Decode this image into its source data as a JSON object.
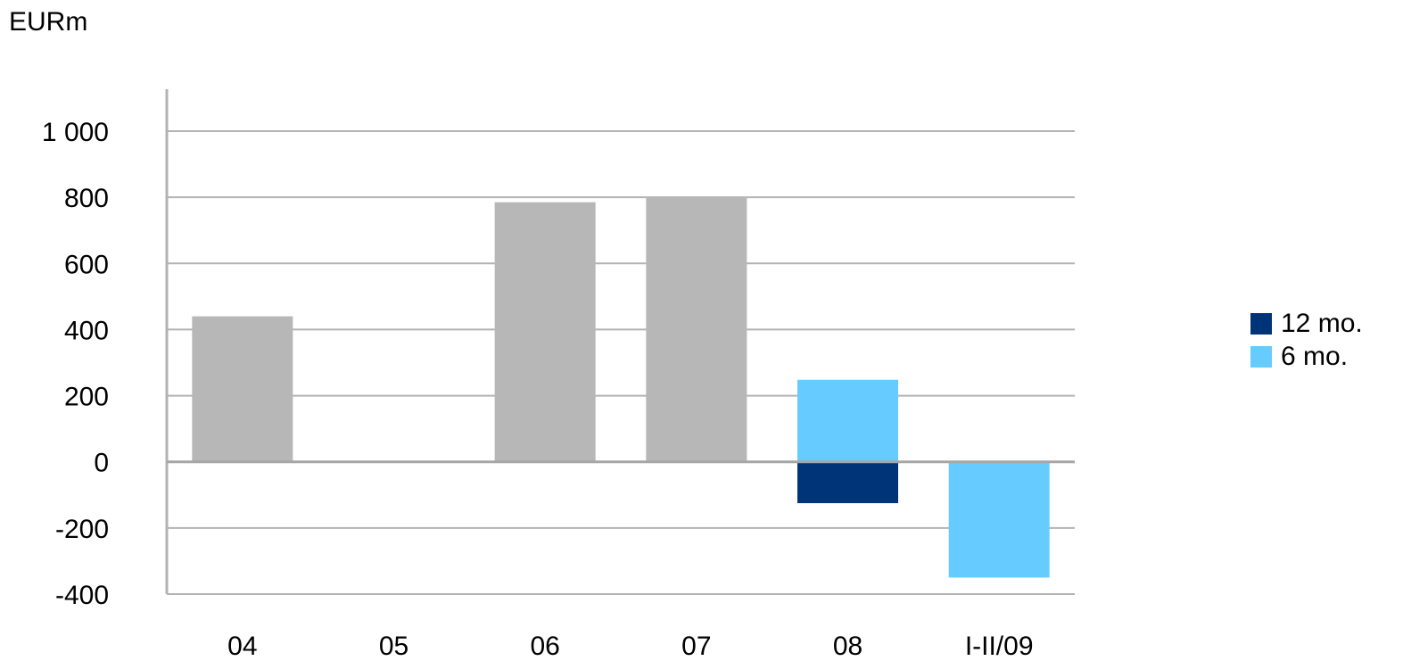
{
  "chart_data": {
    "type": "bar",
    "ylabel": "EURm",
    "categories": [
      "04",
      "05",
      "06",
      "07",
      "08",
      "I-II/09"
    ],
    "ylim": [
      -400,
      1000
    ],
    "yticks": [
      1000,
      800,
      600,
      400,
      200,
      0,
      -200,
      -400
    ],
    "ytick_labels": [
      "1 000",
      "800",
      "600",
      "400",
      "200",
      "0",
      "-200",
      "-400"
    ],
    "grid": true,
    "legend_position": "right",
    "series": [
      {
        "key": "annual",
        "color": "#b7b7b7",
        "values": [
          440,
          0,
          785,
          800,
          null,
          null
        ]
      },
      {
        "key": "12mo",
        "name": "12 mo.",
        "color": "#003478",
        "values": [
          null,
          null,
          null,
          null,
          -125,
          null
        ]
      },
      {
        "key": "6mo",
        "name": "6 mo.",
        "color": "#66ccff",
        "values": [
          null,
          null,
          null,
          null,
          248,
          -350
        ]
      }
    ],
    "legend": [
      {
        "label": "12 mo.",
        "color": "#003478"
      },
      {
        "label": "6 mo.",
        "color": "#66ccff"
      }
    ]
  }
}
